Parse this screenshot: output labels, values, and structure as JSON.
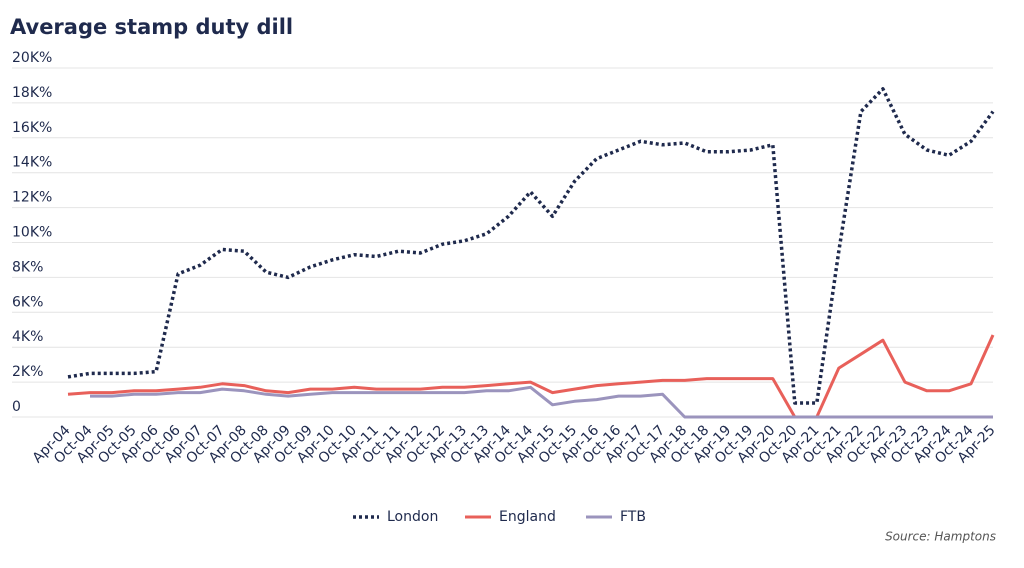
{
  "chart_data": {
    "type": "line",
    "title": "Average stamp duty dill",
    "source": "Source: Hamptons",
    "categories": [
      "Apr-04",
      "Oct-04",
      "Apr-05",
      "Oct-05",
      "Apr-06",
      "Oct-06",
      "Apr-07",
      "Oct-07",
      "Apr-08",
      "Oct-08",
      "Apr-09",
      "Oct-09",
      "Apr-10",
      "Oct-10",
      "Apr-11",
      "Oct-11",
      "Apr-12",
      "Oct-12",
      "Apr-13",
      "Oct-13",
      "Apr-14",
      "Oct-14",
      "Apr-15",
      "Oct-15",
      "Apr-16",
      "Oct-16",
      "Apr-17",
      "Oct-17",
      "Apr-18",
      "Oct-18",
      "Apr-19",
      "Oct-19",
      "Apr-20",
      "Oct-20",
      "Apr-21",
      "Oct-21",
      "Apr-22",
      "Oct-22",
      "Apr-23",
      "Oct-23",
      "Apr-24",
      "Oct-24",
      "Apr-25"
    ],
    "series": [
      {
        "name": "London",
        "color": "#1f2a4d",
        "dashed": true,
        "values": [
          2300,
          2500,
          2500,
          2500,
          2600,
          8200,
          8700,
          9600,
          9500,
          8300,
          8000,
          8600,
          9000,
          9300,
          9200,
          9500,
          9400,
          9900,
          10100,
          10500,
          11500,
          12900,
          11500,
          13500,
          14800,
          15300,
          15800,
          15600,
          15700,
          15200,
          15200,
          15300,
          15600,
          800,
          800,
          9500,
          17500,
          18800,
          16200,
          15300,
          15000,
          15800,
          17500
        ]
      },
      {
        "name": "England",
        "color": "#e8605a",
        "dashed": false,
        "values": [
          1300,
          1400,
          1400,
          1500,
          1500,
          1600,
          1700,
          1900,
          1800,
          1500,
          1400,
          1600,
          1600,
          1700,
          1600,
          1600,
          1600,
          1700,
          1700,
          1800,
          1900,
          2000,
          1400,
          1600,
          1800,
          1900,
          2000,
          2100,
          2100,
          2200,
          2200,
          2200,
          2200,
          0,
          0,
          2800,
          3600,
          4400,
          2000,
          1500,
          1500,
          1900,
          4700
        ]
      },
      {
        "name": "FTB",
        "color": "#9b94bd",
        "dashed": false,
        "values": [
          null,
          1200,
          1200,
          1300,
          1300,
          1400,
          1400,
          1600,
          1500,
          1300,
          1200,
          1300,
          1400,
          1400,
          1400,
          1400,
          1400,
          1400,
          1400,
          1500,
          1500,
          1700,
          700,
          900,
          1000,
          1200,
          1200,
          1300,
          0,
          0,
          0,
          0,
          0,
          0,
          0,
          0,
          0,
          0,
          0,
          0,
          0,
          0,
          0
        ]
      }
    ],
    "ylim": [
      0,
      20000
    ],
    "yticks": [
      0,
      {
        "value": 2000,
        "label": "2K%"
      },
      {
        "value": 4000,
        "label": "4K%"
      },
      {
        "value": 6000,
        "label": "6K%"
      },
      {
        "value": 8000,
        "label": "8K%"
      },
      {
        "value": 10000,
        "label": "10K%"
      },
      {
        "value": 12000,
        "label": "12K%"
      },
      {
        "value": 14000,
        "label": "14K%"
      },
      {
        "value": 16000,
        "label": "16K%"
      },
      {
        "value": 18000,
        "label": "18K%"
      },
      {
        "value": 20000,
        "label": "20K%"
      }
    ],
    "grid": true,
    "legend": "bottom"
  }
}
